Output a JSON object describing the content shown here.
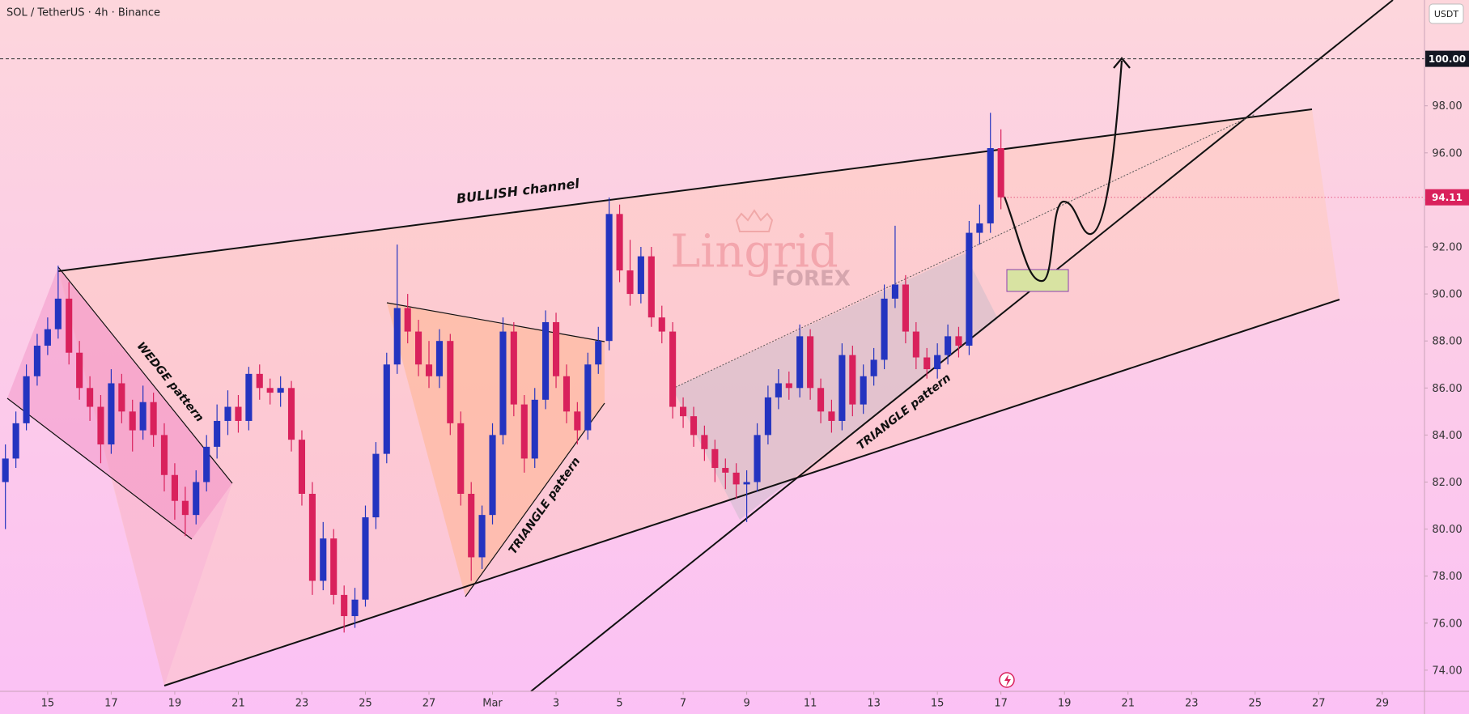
{
  "chart_data": {
    "type": "candlestick",
    "title": "SOL / TetherUS · 4h · Binance",
    "currency": "USDT",
    "annotations": [
      "BULLISH channel",
      "WEDGE pattern",
      "TRIANGLE pattern",
      "TRIANGLE pattern"
    ],
    "watermark": [
      "Lingrid",
      "FOREX"
    ],
    "up_color": "#2434c0",
    "down_color": "#d9215c",
    "reference_line": 100,
    "xlim": [
      13.5,
      58.33
    ],
    "ylim": [
      73.1,
      102.5
    ],
    "xticks": [
      15,
      17,
      19,
      21,
      23,
      25,
      27,
      {
        "value": 29,
        "label": "Mar"
      },
      {
        "value": 31,
        "label": "3"
      },
      {
        "value": 33,
        "label": "5"
      },
      {
        "value": 35,
        "label": "7"
      },
      {
        "value": 37,
        "label": "9"
      },
      {
        "value": 39,
        "label": "11"
      },
      {
        "value": 41,
        "label": "13"
      },
      {
        "value": 43,
        "label": "15"
      },
      {
        "value": 45,
        "label": "17"
      },
      {
        "value": 47,
        "label": "19"
      },
      {
        "value": 49,
        "label": "21"
      },
      {
        "value": 51,
        "label": "23"
      },
      {
        "value": 53,
        "label": "25"
      },
      {
        "value": 55,
        "label": "27"
      },
      {
        "value": 57,
        "label": "29"
      }
    ],
    "yticks": [
      {
        "value": 74,
        "label": "74.00"
      },
      {
        "value": 76,
        "label": "76.00"
      },
      {
        "value": 78,
        "label": "78.00"
      },
      {
        "value": 80,
        "label": "80.00"
      },
      {
        "value": 82,
        "label": "82.00"
      },
      {
        "value": 84,
        "label": "84.00"
      },
      {
        "value": 86,
        "label": "86.00"
      },
      {
        "value": 88,
        "label": "88.00"
      },
      {
        "value": 90,
        "label": "90.00"
      },
      {
        "value": 92,
        "label": "92.00"
      },
      {
        "value": 94,
        "label": "94.00"
      },
      {
        "value": 96,
        "label": "96.00"
      },
      {
        "value": 98,
        "label": "98.00"
      },
      {
        "value": 100,
        "label": "100.00"
      }
    ],
    "x": [
      13.67,
      14,
      14.33,
      14.67,
      15,
      15.33,
      15.67,
      16,
      16.33,
      16.67,
      17,
      17.33,
      17.67,
      18,
      18.33,
      18.67,
      19,
      19.33,
      19.67,
      20,
      20.33,
      20.67,
      21,
      21.33,
      21.67,
      22,
      22.33,
      22.67,
      23,
      23.33,
      23.67,
      24,
      24.33,
      24.67,
      25,
      25.33,
      25.67,
      26,
      26.33,
      26.67,
      27,
      27.33,
      27.67,
      28,
      28.33,
      28.67,
      29,
      29.33,
      29.67,
      30,
      30.33,
      30.67,
      31,
      31.33,
      31.67,
      32,
      32.33,
      32.67,
      33,
      33.33,
      33.67,
      34,
      34.33,
      34.67,
      35,
      35.33,
      35.67,
      36,
      36.33,
      36.67,
      37,
      37.33,
      37.67,
      38,
      38.33,
      38.67,
      39,
      39.33,
      39.67,
      40,
      40.33,
      40.67,
      41,
      41.33,
      41.67,
      42,
      42.33,
      42.67,
      43,
      43.33,
      43.67,
      44,
      44.33,
      44.67,
      45
    ],
    "open": [
      82.0,
      83.0,
      84.5,
      86.5,
      87.8,
      88.5,
      89.8,
      87.5,
      86.0,
      85.2,
      83.6,
      86.2,
      85.0,
      84.2,
      85.4,
      84.0,
      82.3,
      81.2,
      80.6,
      82.0,
      83.5,
      84.6,
      85.2,
      84.6,
      86.6,
      86.0,
      85.8,
      86.0,
      83.8,
      81.5,
      77.8,
      79.6,
      77.2,
      76.3,
      77.0,
      80.5,
      83.2,
      87.0,
      89.4,
      88.4,
      87.0,
      86.5,
      88.0,
      84.5,
      81.5,
      78.8,
      80.6,
      84.0,
      88.4,
      85.3,
      83.0,
      85.5,
      88.8,
      86.5,
      85.0,
      84.2,
      87.0,
      88.0,
      93.4,
      91.0,
      90.0,
      91.6,
      89.0,
      88.4,
      85.2,
      84.8,
      84.0,
      83.4,
      82.6,
      82.4,
      81.9,
      82.0,
      84.0,
      85.6,
      86.2,
      86.0,
      88.2,
      86.0,
      85.0,
      84.6,
      87.4,
      85.3,
      86.5,
      87.2,
      89.8,
      90.4,
      88.4,
      87.3,
      86.8,
      87.4,
      88.2,
      87.8,
      92.6,
      93.0,
      96.2
    ],
    "high": [
      83.6,
      85.0,
      87.0,
      88.3,
      89.0,
      91.2,
      90.5,
      88.0,
      86.5,
      85.7,
      86.8,
      86.6,
      85.5,
      86.1,
      85.8,
      84.5,
      82.8,
      81.8,
      82.5,
      84.0,
      85.3,
      85.9,
      85.7,
      86.9,
      87.0,
      86.4,
      86.5,
      86.3,
      84.2,
      82.0,
      80.3,
      80.0,
      77.6,
      77.5,
      81.0,
      83.7,
      87.5,
      92.1,
      90.0,
      88.9,
      88.0,
      88.5,
      88.3,
      85.0,
      82.0,
      81.0,
      84.5,
      89.0,
      88.8,
      85.7,
      86.0,
      89.3,
      89.2,
      87.0,
      85.4,
      87.5,
      88.6,
      94.1,
      93.8,
      92.3,
      92.0,
      92.0,
      89.5,
      88.8,
      85.6,
      85.2,
      84.4,
      83.8,
      83.0,
      82.8,
      82.5,
      84.5,
      86.1,
      86.8,
      86.7,
      88.7,
      88.5,
      86.4,
      85.5,
      87.9,
      87.8,
      87.0,
      87.7,
      90.4,
      92.9,
      90.8,
      88.8,
      87.7,
      87.9,
      88.7,
      88.6,
      93.1,
      93.8,
      97.7,
      97.0
    ],
    "low": [
      80.0,
      82.6,
      84.2,
      86.1,
      87.4,
      88.1,
      87.0,
      85.5,
      84.6,
      82.8,
      83.2,
      84.5,
      83.3,
      83.8,
      83.5,
      81.6,
      80.4,
      79.7,
      80.2,
      81.6,
      83.0,
      84.0,
      84.1,
      84.2,
      85.5,
      85.3,
      85.2,
      83.3,
      81.0,
      77.2,
      77.4,
      76.8,
      75.6,
      75.8,
      76.7,
      80.0,
      82.8,
      86.6,
      87.9,
      86.5,
      86.0,
      86.0,
      84.0,
      81.0,
      77.8,
      78.3,
      80.2,
      83.6,
      84.8,
      82.4,
      82.6,
      85.1,
      86.0,
      84.5,
      83.6,
      83.8,
      86.6,
      87.6,
      90.5,
      89.5,
      89.6,
      88.6,
      87.9,
      84.7,
      84.3,
      83.5,
      82.9,
      82.0,
      81.7,
      81.3,
      80.3,
      81.6,
      83.6,
      85.1,
      85.5,
      85.6,
      85.5,
      84.5,
      84.1,
      84.2,
      84.8,
      84.9,
      86.1,
      86.8,
      89.4,
      87.9,
      86.8,
      86.4,
      86.4,
      87.0,
      87.3,
      87.4,
      92.1,
      92.6,
      93.6
    ],
    "close": [
      83.0,
      84.5,
      86.5,
      87.8,
      88.5,
      89.8,
      87.5,
      86.0,
      85.2,
      83.6,
      86.2,
      85.0,
      84.2,
      85.4,
      84.0,
      82.3,
      81.2,
      80.6,
      82.0,
      83.5,
      84.6,
      85.2,
      84.6,
      86.6,
      86.0,
      85.8,
      86.0,
      83.8,
      81.5,
      77.8,
      79.6,
      77.2,
      76.3,
      77.0,
      80.5,
      83.2,
      87.0,
      89.4,
      88.4,
      87.0,
      86.5,
      88.0,
      84.5,
      81.5,
      78.8,
      80.6,
      84.0,
      88.4,
      85.3,
      83.0,
      85.5,
      88.8,
      86.5,
      85.0,
      84.2,
      87.0,
      88.0,
      93.4,
      91.0,
      90.0,
      91.6,
      89.0,
      88.4,
      85.2,
      84.8,
      84.0,
      83.4,
      82.6,
      82.4,
      81.9,
      82.0,
      84.0,
      85.6,
      86.2,
      86.0,
      88.2,
      86.0,
      85.0,
      84.6,
      87.4,
      85.3,
      86.5,
      87.2,
      89.8,
      90.4,
      88.4,
      87.3,
      86.8,
      87.4,
      88.2,
      87.8,
      92.6,
      93.0,
      96.2,
      94.11
    ]
  }
}
